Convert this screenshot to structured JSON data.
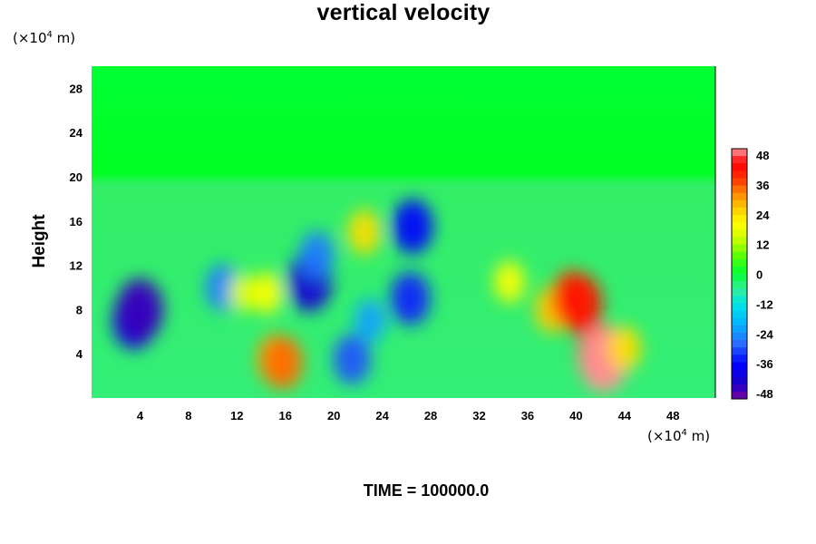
{
  "chart_data": {
    "type": "heatmap",
    "title": "vertical velocity",
    "ylabel": "Height",
    "xlabel": "",
    "x_unit": "(×10",
    "y_unit": "(×10",
    "unit_exp": "4",
    "unit_tail": " m)",
    "xlim": [
      0,
      51.5
    ],
    "ylim": [
      0,
      30
    ],
    "x_ticks": [
      4,
      8,
      12,
      16,
      20,
      24,
      28,
      32,
      36,
      40,
      44,
      48
    ],
    "y_ticks": [
      4,
      8,
      12,
      16,
      20,
      24,
      28
    ],
    "colorbar": {
      "ticks": [
        48,
        36,
        24,
        12,
        0,
        -12,
        -24,
        -36,
        -48
      ],
      "range": [
        -50,
        50
      ]
    },
    "features": [
      {
        "x": 3.5,
        "y": 7.0,
        "value": -40
      },
      {
        "x": 4.0,
        "y": 8.0,
        "value": -46
      },
      {
        "x": 10.8,
        "y": 10.0,
        "value": -26
      },
      {
        "x": 12.5,
        "y": 9.5,
        "value": 16
      },
      {
        "x": 14.5,
        "y": 9.5,
        "value": 20
      },
      {
        "x": 15.2,
        "y": 3.5,
        "value": 30
      },
      {
        "x": 15.8,
        "y": 3.2,
        "value": 34
      },
      {
        "x": 18.0,
        "y": 10.5,
        "value": -42
      },
      {
        "x": 18.6,
        "y": 13.0,
        "value": -26
      },
      {
        "x": 21.5,
        "y": 3.5,
        "value": -30
      },
      {
        "x": 23.0,
        "y": 7.0,
        "value": -22
      },
      {
        "x": 22.5,
        "y": 15.0,
        "value": 24
      },
      {
        "x": 26.5,
        "y": 15.5,
        "value": -36
      },
      {
        "x": 26.3,
        "y": 9.0,
        "value": -34
      },
      {
        "x": 34.5,
        "y": 10.5,
        "value": 20
      },
      {
        "x": 38.0,
        "y": 8.0,
        "value": 26
      },
      {
        "x": 39.7,
        "y": 9.0,
        "value": 38
      },
      {
        "x": 40.3,
        "y": 8.5,
        "value": 42
      },
      {
        "x": 42.0,
        "y": 4.0,
        "value": 44
      },
      {
        "x": 42.3,
        "y": 3.5,
        "value": 50
      },
      {
        "x": 44.0,
        "y": 4.5,
        "value": 24
      }
    ]
  },
  "footer": {
    "time_label": "TIME = 100000.0"
  }
}
